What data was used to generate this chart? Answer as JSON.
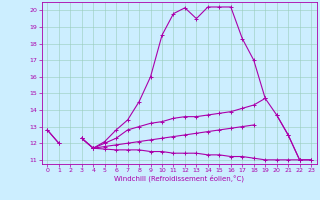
{
  "xlabel": "Windchill (Refroidissement éolien,°C)",
  "x_values": [
    0,
    1,
    2,
    3,
    4,
    5,
    6,
    7,
    8,
    9,
    10,
    11,
    12,
    13,
    14,
    15,
    16,
    17,
    18,
    19,
    20,
    21,
    22,
    23
  ],
  "line1": [
    12.8,
    12.0,
    null,
    12.3,
    11.7,
    12.1,
    12.8,
    13.4,
    14.5,
    16.0,
    18.5,
    19.8,
    20.15,
    19.5,
    20.2,
    20.2,
    20.2,
    18.3,
    17.0,
    14.7,
    null,
    null,
    null,
    null
  ],
  "line2": [
    null,
    null,
    null,
    null,
    null,
    null,
    null,
    null,
    null,
    null,
    null,
    null,
    null,
    null,
    null,
    null,
    null,
    null,
    null,
    null,
    13.7,
    12.5,
    11.0,
    null
  ],
  "line3": [
    12.8,
    12.0,
    null,
    12.3,
    11.7,
    12.0,
    12.3,
    12.8,
    13.0,
    13.2,
    13.3,
    13.5,
    13.6,
    13.6,
    13.7,
    13.8,
    13.9,
    14.1,
    14.3,
    14.7,
    13.7,
    12.5,
    11.0,
    11.0
  ],
  "line4": [
    null,
    null,
    null,
    12.3,
    11.7,
    11.8,
    11.9,
    12.0,
    12.1,
    12.2,
    12.3,
    12.4,
    12.5,
    12.6,
    12.7,
    12.8,
    12.9,
    13.0,
    13.1,
    null,
    null,
    null,
    null,
    null
  ],
  "line5": [
    null,
    null,
    null,
    null,
    11.7,
    11.65,
    11.6,
    11.6,
    11.6,
    11.5,
    11.5,
    11.4,
    11.4,
    11.4,
    11.3,
    11.3,
    11.2,
    11.2,
    11.1,
    11.0,
    11.0,
    11.0,
    11.0,
    11.0
  ],
  "ylim": [
    10.75,
    20.5
  ],
  "yticks": [
    11,
    12,
    13,
    14,
    15,
    16,
    17,
    18,
    19,
    20
  ],
  "xticks": [
    0,
    1,
    2,
    3,
    4,
    5,
    6,
    7,
    8,
    9,
    10,
    11,
    12,
    13,
    14,
    15,
    16,
    17,
    18,
    19,
    20,
    21,
    22,
    23
  ],
  "line_color": "#aa00aa",
  "bg_color": "#cceeff",
  "marker": "+"
}
